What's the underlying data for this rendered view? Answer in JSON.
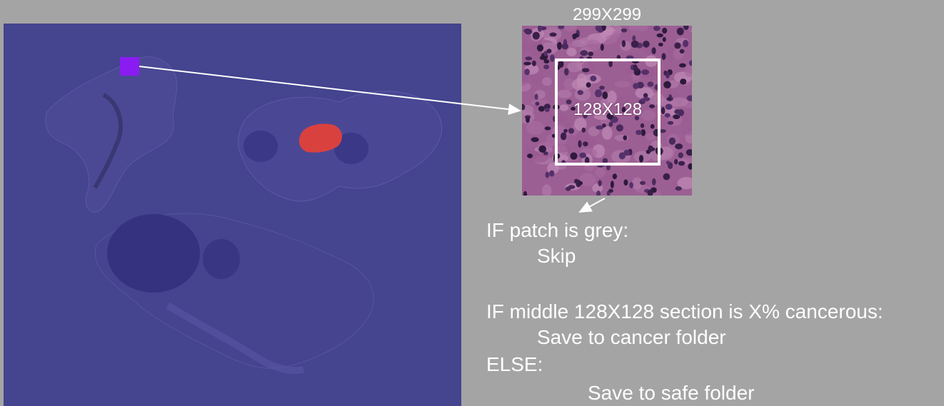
{
  "diagram": {
    "patch_size_label": "299X299",
    "inner_size_label": "128X128",
    "rules": {
      "if_grey": "IF patch is grey:",
      "skip": "Skip",
      "if_cancer": "IF middle 128X128 section is X% cancerous:",
      "save_cancer": "Save to cancer folder",
      "else": "ELSE:",
      "save_safe": "Save to safe folder"
    }
  },
  "colors": {
    "background": "#a4a4a4",
    "slide_overlay": "#44448f",
    "tumor_region": "#d9413f",
    "patch_marker": "#8a1cf2",
    "text": "#ffffff"
  }
}
